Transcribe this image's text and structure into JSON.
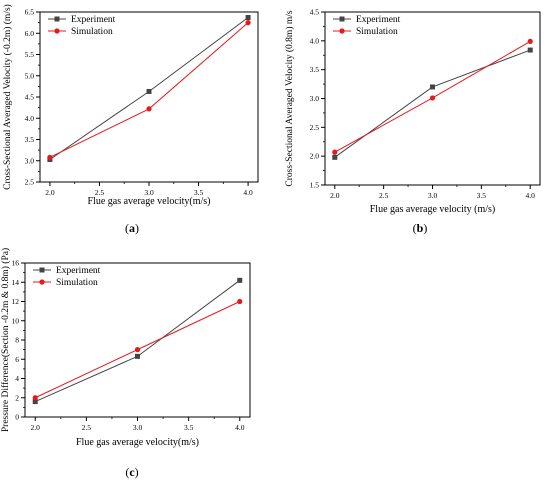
{
  "colors": {
    "experiment": "#444444",
    "simulation": "#e8191b"
  },
  "chart_data": [
    {
      "type": "line",
      "caption": "a",
      "xlabel": "Flue gas average velocity(m/s)",
      "ylabel": "Cross-Sectional Averaged Velocity (-0.2m) (m/s)",
      "xlim": [
        1.9,
        4.1
      ],
      "ylim": [
        2.5,
        6.5
      ],
      "xticks": [
        "2.0",
        "2.5",
        "3.0",
        "3.5",
        "4.0"
      ],
      "yticks": [
        "2.5",
        "3.0",
        "3.5",
        "4.0",
        "4.5",
        "5.0",
        "5.5",
        "6.0",
        "6.5"
      ],
      "x": [
        2.0,
        3.0,
        4.0
      ],
      "series": [
        {
          "name": "Experiment",
          "marker": "square",
          "values": [
            3.03,
            4.63,
            6.37
          ]
        },
        {
          "name": "Simulation",
          "marker": "circle",
          "values": [
            3.08,
            4.22,
            6.25
          ]
        }
      ],
      "legend": "top-left"
    },
    {
      "type": "line",
      "caption": "b",
      "xlabel": "Flue gas average velocity (m/s)",
      "ylabel": "Cross-Sectional Averaged Velocity (0.8m) m/s",
      "xlim": [
        1.9,
        4.1
      ],
      "ylim": [
        1.5,
        4.5
      ],
      "xticks": [
        "2.0",
        "2.5",
        "3.0",
        "3.5",
        "4.0"
      ],
      "yticks": [
        "1.5",
        "2.0",
        "2.5",
        "3.0",
        "3.5",
        "4.0",
        "4.5"
      ],
      "x": [
        2.0,
        3.0,
        4.0
      ],
      "series": [
        {
          "name": "Experiment",
          "marker": "square",
          "values": [
            1.98,
            3.2,
            3.84
          ]
        },
        {
          "name": "Simulation",
          "marker": "circle",
          "values": [
            2.07,
            3.01,
            3.99
          ]
        }
      ],
      "legend": "top-left"
    },
    {
      "type": "line",
      "caption": "c",
      "xlabel": "Flue gas average velocity(m/s)",
      "ylabel": "Pressure Difference(Section -0.2m & 0.8m) (Pa)",
      "xlim": [
        1.9,
        4.1
      ],
      "ylim": [
        0,
        16
      ],
      "xticks": [
        "2.0",
        "2.5",
        "3.0",
        "3.5",
        "4.0"
      ],
      "yticks": [
        "0",
        "2",
        "4",
        "6",
        "8",
        "10",
        "12",
        "14",
        "16"
      ],
      "x": [
        2.0,
        3.0,
        4.0
      ],
      "series": [
        {
          "name": "Experiment",
          "marker": "square",
          "values": [
            1.6,
            6.3,
            14.2
          ]
        },
        {
          "name": "Simulation",
          "marker": "circle",
          "values": [
            2.0,
            7.0,
            12.0
          ]
        }
      ],
      "legend": "top-left"
    }
  ]
}
